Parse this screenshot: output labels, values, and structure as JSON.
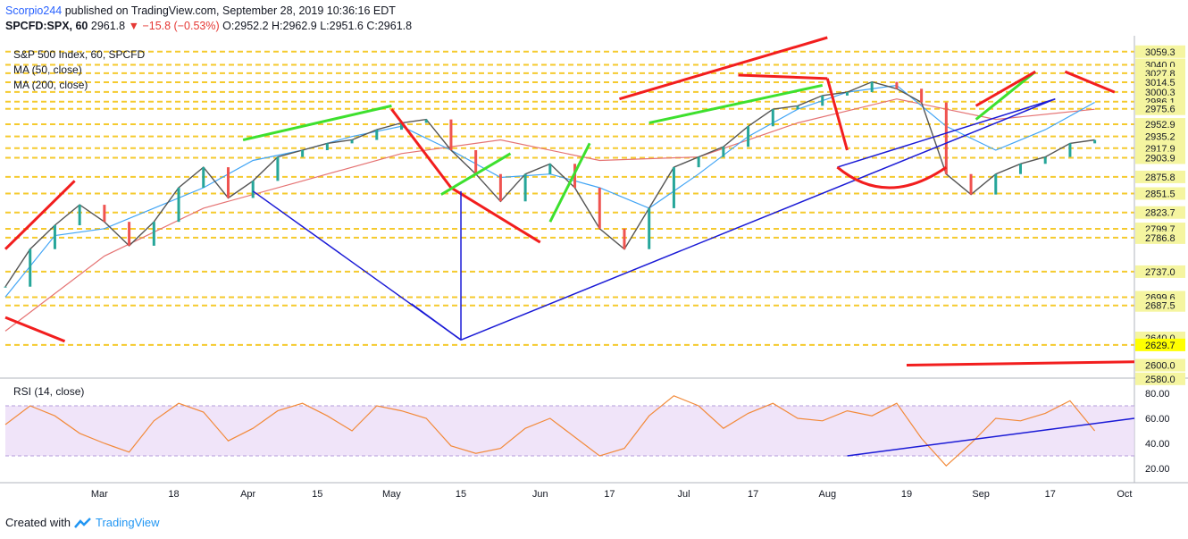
{
  "header": {
    "user": "Scorpio244",
    "published_text": "published on TradingView.com, September 28, 2019 10:36:16 EDT",
    "symbol": "SPCFD:SPX, 60",
    "last": "2961.8",
    "down_arrow": "▼",
    "change": "−15.8 (−0.53%)",
    "ohlc": "O:2952.2 H:2962.9 L:2951.6 C:2961.8"
  },
  "footer": {
    "created_with": "Created with",
    "brand": "TradingView"
  },
  "colors": {
    "price_up": "#26a69a",
    "price_down": "#ef5350",
    "candle_gray": "#555555",
    "ma50": "#42a5f5",
    "ma200": "#e57373",
    "trend_red": "#f21e1e",
    "trend_green": "#3de02e",
    "trend_blue": "#1a1ad6",
    "support_line": "#f5c518",
    "rsi_line": "#f28a3a",
    "rsi_band": "#e9d8f7",
    "price_tag_bg": "#f5f5a0",
    "highlight_tag_bg": "#ffff00"
  },
  "chart_data": [
    {
      "type": "line",
      "title": "S&P 500 Index, 60, SPCFD",
      "legend": [
        "MA (50, close)",
        "MA (200, close)"
      ],
      "xlabel": "",
      "ylabel": "",
      "x_ticks": [
        "Mar",
        "18",
        "Apr",
        "15",
        "May",
        "15",
        "Jun",
        "17",
        "Jul",
        "17",
        "Aug",
        "19",
        "Sep",
        "17",
        "Oct"
      ],
      "ylim": [
        2585,
        3080
      ],
      "y_levels": [
        3059.3,
        3040.0,
        3027.8,
        3014.5,
        3000.3,
        2986.1,
        2975.6,
        2952.9,
        2935.2,
        2917.9,
        2903.9,
        2875.8,
        2851.5,
        2823.7,
        2799.7,
        2786.8,
        2737.0,
        2699.6,
        2687.5,
        2640.0,
        2629.7,
        2600.0,
        2580.0
      ],
      "y_axis_labels_shown": [
        "3059.3",
        "3040.0",
        "3027.8",
        "3014.5",
        "3000.3",
        "2986.1",
        "2975.6",
        "2952.9",
        "2935.2",
        "2917.9",
        "2903.9",
        "2875.8",
        "2851.5",
        "2823.7",
        "2799.7",
        "2786.8",
        "2737.0",
        "2699.6",
        "2687.5",
        "2640.0",
        "2629.7",
        "2600.0",
        "2580.0"
      ],
      "highlighted_level": "2629.7",
      "series": [
        {
          "name": "S&P 500 Index",
          "x": [
            0,
            5,
            10,
            15,
            20,
            25,
            30,
            35,
            40,
            45,
            50,
            55,
            60,
            65,
            70,
            75,
            80,
            85,
            90,
            95,
            100,
            105,
            110,
            115,
            120,
            125,
            130,
            135,
            140,
            145,
            150,
            155,
            160,
            165,
            170,
            175,
            180,
            185,
            190,
            195,
            200,
            205,
            210,
            215,
            220
          ],
          "values": [
            2715,
            2770,
            2805,
            2835,
            2810,
            2775,
            2810,
            2860,
            2890,
            2845,
            2870,
            2905,
            2915,
            2925,
            2930,
            2945,
            2955,
            2960,
            2915,
            2880,
            2840,
            2880,
            2895,
            2860,
            2800,
            2770,
            2830,
            2890,
            2905,
            2920,
            2950,
            2975,
            2980,
            2995,
            3000,
            3015,
            3005,
            2985,
            2880,
            2850,
            2880,
            2895,
            2905,
            2925,
            2930
          ]
        },
        {
          "name": "MA (50, close)",
          "x": [
            0,
            10,
            20,
            30,
            40,
            50,
            60,
            70,
            80,
            90,
            100,
            110,
            120,
            130,
            140,
            150,
            160,
            170,
            180,
            190,
            200,
            210,
            220
          ],
          "values": [
            2700,
            2790,
            2800,
            2830,
            2860,
            2900,
            2915,
            2935,
            2950,
            2915,
            2875,
            2880,
            2860,
            2830,
            2880,
            2935,
            2975,
            3000,
            3010,
            2950,
            2915,
            2945,
            2985
          ]
        },
        {
          "name": "MA (200, close)",
          "x": [
            0,
            20,
            40,
            60,
            80,
            100,
            120,
            140,
            160,
            180,
            200,
            220
          ],
          "values": [
            2650,
            2760,
            2830,
            2870,
            2910,
            2930,
            2900,
            2905,
            2955,
            2990,
            2960,
            2975
          ]
        }
      ]
    },
    {
      "type": "line",
      "title": "RSI (14, close)",
      "xlabel": "",
      "ylabel": "",
      "ylim": [
        10,
        90
      ],
      "y_ticks": [
        "80.00",
        "60.00",
        "40.00",
        "20.00"
      ],
      "band": [
        30,
        70
      ],
      "series": [
        {
          "name": "RSI (14, close)",
          "x": [
            0,
            5,
            10,
            15,
            20,
            25,
            30,
            35,
            40,
            45,
            50,
            55,
            60,
            65,
            70,
            75,
            80,
            85,
            90,
            95,
            100,
            105,
            110,
            115,
            120,
            125,
            130,
            135,
            140,
            145,
            150,
            155,
            160,
            165,
            170,
            175,
            180,
            185,
            190,
            195,
            200,
            205,
            210,
            215,
            220
          ],
          "values": [
            55,
            70,
            62,
            48,
            40,
            33,
            58,
            72,
            65,
            42,
            52,
            66,
            72,
            62,
            50,
            70,
            66,
            60,
            38,
            32,
            36,
            52,
            60,
            45,
            30,
            36,
            62,
            78,
            70,
            52,
            64,
            72,
            60,
            58,
            66,
            62,
            72,
            44,
            22,
            40,
            60,
            58,
            64,
            74,
            50
          ]
        }
      ]
    }
  ]
}
